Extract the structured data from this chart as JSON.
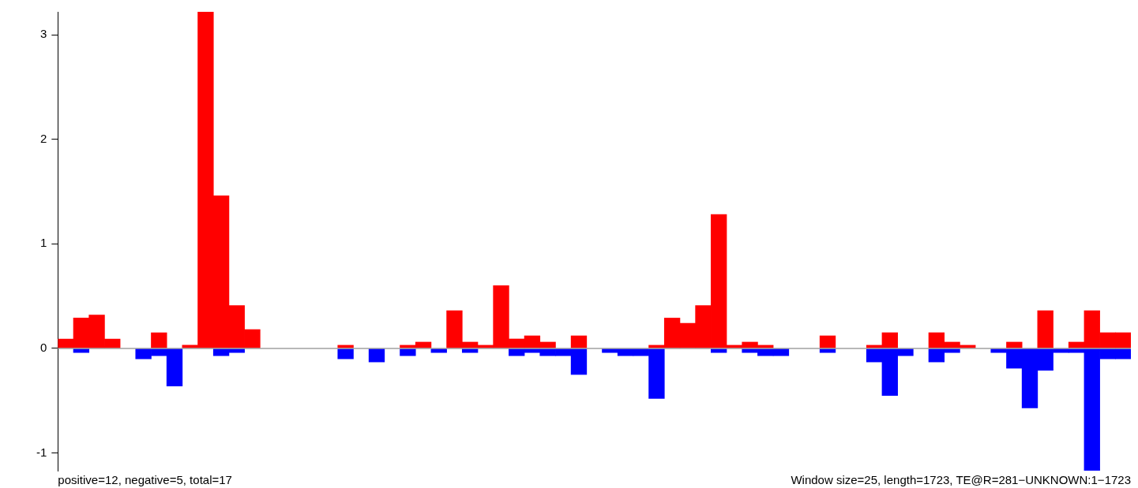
{
  "chart_data": {
    "type": "bar",
    "stacked": true,
    "categories": [
      null,
      null,
      null,
      null,
      null,
      null,
      null,
      null,
      null,
      null,
      null,
      null,
      null,
      null,
      null,
      null,
      null,
      null,
      null,
      null,
      null,
      null,
      null,
      null,
      null,
      null,
      null,
      null,
      null,
      null,
      null,
      null,
      null,
      null,
      null,
      null,
      null,
      null,
      null,
      null,
      null,
      null,
      null,
      null,
      null,
      null,
      null,
      null,
      null,
      null,
      null,
      null,
      null,
      null,
      null,
      null,
      null,
      null,
      null,
      null,
      null,
      null,
      null,
      null,
      null,
      null,
      null,
      null,
      null
    ],
    "series": [
      {
        "color": "#ff0000",
        "values": [
          0.09,
          0.29,
          0.32,
          0.09,
          null,
          null,
          0.15,
          null,
          0.03,
          3.22,
          1.46,
          0.41,
          0.18,
          null,
          null,
          null,
          null,
          null,
          0.03,
          null,
          null,
          null,
          0.03,
          0.06,
          null,
          0.36,
          0.06,
          0.03,
          0.6,
          0.09,
          0.12,
          0.06,
          null,
          0.12,
          null,
          null,
          null,
          null,
          0.03,
          0.29,
          0.24,
          0.41,
          1.28,
          0.03,
          0.06,
          0.03,
          null,
          null,
          null,
          0.12,
          null,
          null,
          0.03,
          0.15,
          null,
          null,
          0.15,
          0.06,
          0.03,
          null,
          null,
          0.06,
          null,
          0.36,
          null,
          0.06,
          0.36,
          0.15,
          0.15
        ]
      },
      {
        "color": "#0000ff",
        "values": [
          null,
          -0.04,
          null,
          null,
          null,
          -0.1,
          -0.07,
          -0.36,
          null,
          null,
          -0.07,
          -0.04,
          null,
          null,
          null,
          null,
          null,
          null,
          -0.1,
          null,
          -0.13,
          null,
          -0.07,
          null,
          -0.04,
          null,
          -0.04,
          null,
          null,
          -0.07,
          -0.04,
          -0.07,
          -0.07,
          -0.25,
          null,
          -0.04,
          -0.07,
          -0.07,
          -0.48,
          null,
          null,
          null,
          -0.04,
          null,
          -0.04,
          -0.07,
          -0.07,
          null,
          null,
          -0.04,
          null,
          null,
          -0.13,
          -0.45,
          -0.07,
          null,
          -0.13,
          -0.04,
          null,
          null,
          -0.04,
          -0.19,
          -0.57,
          -0.21,
          -0.04,
          -0.04,
          -1.17,
          -0.1,
          -0.1
        ]
      }
    ],
    "ylim": [
      -1.17,
      3.22
    ],
    "yticks": [
      -1,
      0,
      1,
      2,
      3
    ],
    "tick_labels": "y",
    "grid": false,
    "legend": false,
    "ref_lines": [
      {
        "axis": "y",
        "value": 0,
        "color": "#a0a0a0"
      }
    ],
    "annotations": [
      "positive=12, negative=5, total=17",
      "Window size=25, length=1723, TE@R=281−UNKNOWN:1−1723"
    ]
  }
}
